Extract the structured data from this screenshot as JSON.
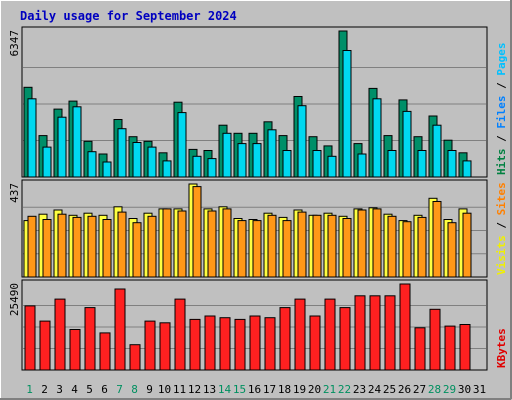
{
  "chart_data": {
    "type": "bar",
    "title": "Daily usage for September 2024",
    "categories": [
      "1",
      "2",
      "3",
      "4",
      "5",
      "6",
      "7",
      "8",
      "9",
      "10",
      "11",
      "12",
      "13",
      "14",
      "15",
      "16",
      "17",
      "18",
      "19",
      "20",
      "21",
      "22",
      "23",
      "24",
      "25",
      "26",
      "27",
      "28",
      "29",
      "30",
      "31"
    ],
    "weekend_days": [
      "1",
      "7",
      "8",
      "14",
      "15",
      "21",
      "22",
      "28",
      "29"
    ],
    "panels": [
      {
        "id": "hits_files",
        "ymax": 6347,
        "ymax_label": "6347",
        "axis_label_parts": [
          {
            "text": "Hits",
            "color": "#008040"
          },
          {
            "text": " / ",
            "color": "#000000"
          },
          {
            "text": "Files",
            "color": "#0080ff"
          },
          {
            "text": " / ",
            "color": "#000000"
          },
          {
            "text": "Pages",
            "color": "#00c0ff"
          }
        ],
        "series": [
          {
            "name": "Hits",
            "color": "#008f68",
            "values": [
              3900,
              1800,
              2950,
              3300,
              1550,
              1000,
              2500,
              1750,
              1550,
              1050,
              3250,
              1200,
              1150,
              2250,
              1900,
              1900,
              2400,
              1800,
              3500,
              1750,
              1350,
              6347,
              1450,
              3850,
              1800,
              3350,
              1750,
              2650,
              1600,
              1050,
              0
            ]
          },
          {
            "name": "Files",
            "color": "#00d8f0",
            "values": [
              3400,
              1300,
              2600,
              3050,
              1100,
              650,
              2100,
              1500,
              1300,
              700,
              2800,
              900,
              800,
              1900,
              1450,
              1450,
              2050,
              1150,
              3100,
              1150,
              900,
              5500,
              1000,
              3400,
              1150,
              2850,
              1150,
              2250,
              1150,
              700,
              0
            ]
          }
        ]
      },
      {
        "id": "visits_sites",
        "ymax": 437,
        "ymax_label": "437",
        "axis_label_parts": [
          {
            "text": "Visits",
            "color": "#f0f000"
          },
          {
            "text": " / ",
            "color": "#000000"
          },
          {
            "text": "Sites",
            "color": "#ff8000"
          }
        ],
        "series": [
          {
            "name": "Visits",
            "color": "#ffff40",
            "values": [
              265,
              295,
              315,
              290,
              300,
              290,
              330,
              275,
              300,
              320,
              320,
              437,
              320,
              330,
              275,
              270,
              300,
              280,
              315,
              290,
              300,
              285,
              320,
              325,
              295,
              265,
              290,
              370,
              270,
              320,
              0
            ]
          },
          {
            "name": "Sites",
            "color": "#ff9818",
            "values": [
              285,
              270,
              295,
              280,
              285,
              270,
              305,
              255,
              285,
              320,
              310,
              425,
              310,
              320,
              265,
              265,
              290,
              265,
              305,
              290,
              290,
              275,
              315,
              320,
              285,
              260,
              280,
              355,
              255,
              300,
              0
            ]
          }
        ]
      },
      {
        "id": "kbytes",
        "ymax": 25490,
        "ymax_label": "25490",
        "axis_label_parts": [
          {
            "text": "KBytes",
            "color": "#e00000"
          }
        ],
        "series": [
          {
            "name": "KBytes",
            "color": "#ff2020",
            "values": [
              19000,
              14500,
              21000,
              12000,
              18500,
              11000,
              24000,
              7500,
              14500,
              14000,
              21000,
              15000,
              16000,
              15500,
              15000,
              16000,
              15500,
              18500,
              21000,
              16000,
              21000,
              18500,
              22000,
              22000,
              22000,
              25490,
              12500,
              18000,
              13000,
              13500,
              0
            ]
          }
        ]
      }
    ]
  },
  "colors": {
    "background": "#c0c0c0",
    "frame_light": "#ffffff",
    "frame_dark": "#808080",
    "title": "#0000c0",
    "day_label": "#000000",
    "weekend_label": "#009060",
    "gridline": "#808080"
  }
}
